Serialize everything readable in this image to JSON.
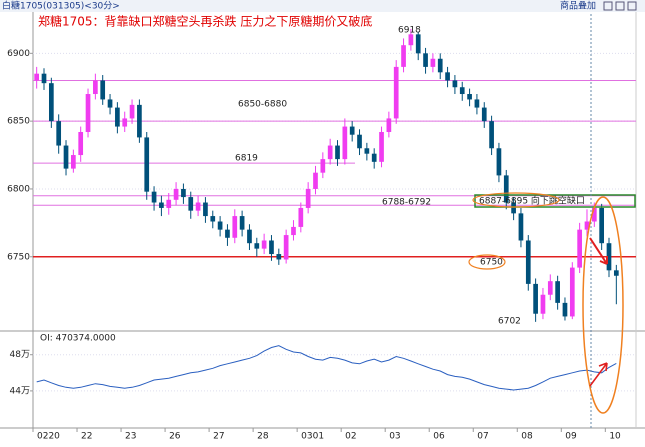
{
  "header": {
    "symbol": "白糖1705(031305)<30分>",
    "overlay": "商品叠加"
  },
  "chart_data": [
    {
      "type": "candlestick",
      "title": "郑糖1705：背靠缺口郑糖空头再杀跌 压力之下原糖期价又破底",
      "categories": [
        "0220",
        null,
        null,
        null,
        null,
        null,
        "22",
        null,
        null,
        null,
        null,
        null,
        "23",
        null,
        null,
        null,
        null,
        null,
        "26",
        null,
        null,
        null,
        null,
        null,
        "27",
        null,
        null,
        null,
        null,
        null,
        "28",
        null,
        null,
        null,
        null,
        null,
        "0301",
        null,
        null,
        null,
        null,
        null,
        "02",
        null,
        null,
        null,
        null,
        null,
        "03",
        null,
        null,
        null,
        null,
        null,
        "06",
        null,
        null,
        null,
        null,
        null,
        "07",
        null,
        null,
        null,
        null,
        null,
        "08",
        null,
        null,
        null,
        null,
        null,
        "09",
        null,
        null,
        null,
        null,
        null,
        "10",
        null
      ],
      "open": [
        6880,
        6885,
        6878,
        6850,
        6832,
        6815,
        6825,
        6842,
        6870,
        6880,
        6866,
        6860,
        6846,
        6852,
        6862,
        6838,
        6798,
        6790,
        6786,
        6792,
        6800,
        6794,
        6784,
        6790,
        6780,
        6776,
        6770,
        6764,
        6780,
        6770,
        6760,
        6756,
        6762,
        6752,
        6748,
        6766,
        6772,
        6786,
        6800,
        6812,
        6822,
        6832,
        6822,
        6846,
        6840,
        6830,
        6826,
        6820,
        6842,
        6852,
        6890,
        6906,
        6914,
        6900,
        6890,
        6896,
        6886,
        6880,
        6875,
        6870,
        6866,
        6860,
        6850,
        6830,
        6810,
        6790,
        6782,
        6762,
        6730,
        6708,
        6722,
        6732,
        6716,
        6706,
        6742,
        6770,
        6776,
        6786,
        6760,
        6740
      ],
      "high": [
        6890,
        6889,
        6882,
        6855,
        6836,
        6829,
        6846,
        6874,
        6885,
        6884,
        6870,
        6864,
        6857,
        6866,
        6866,
        6842,
        6802,
        6795,
        6797,
        6805,
        6804,
        6798,
        6795,
        6794,
        6784,
        6780,
        6774,
        6785,
        6784,
        6774,
        6764,
        6767,
        6766,
        6756,
        6770,
        6777,
        6790,
        6805,
        6817,
        6827,
        6837,
        6836,
        6852,
        6850,
        6844,
        6834,
        6830,
        6846,
        6857,
        6895,
        6911,
        6918,
        6916,
        6904,
        6900,
        6900,
        6890,
        6884,
        6879,
        6874,
        6870,
        6864,
        6854,
        6834,
        6814,
        6794,
        6786,
        6766,
        6734,
        6727,
        6737,
        6736,
        6720,
        6746,
        6775,
        6785,
        6790,
        6789,
        6764,
        6744
      ],
      "low": [
        6874,
        6873,
        6845,
        6826,
        6810,
        6812,
        6820,
        6838,
        6866,
        6862,
        6855,
        6841,
        6842,
        6848,
        6834,
        6792,
        6784,
        6780,
        6781,
        6788,
        6789,
        6778,
        6780,
        6775,
        6771,
        6765,
        6758,
        6760,
        6765,
        6755,
        6750,
        6752,
        6747,
        6744,
        6745,
        6762,
        6768,
        6782,
        6796,
        6808,
        6818,
        6817,
        6818,
        6835,
        6825,
        6821,
        6815,
        6816,
        6838,
        6848,
        6886,
        6902,
        6895,
        6885,
        6886,
        6881,
        6875,
        6870,
        6865,
        6861,
        6855,
        6845,
        6825,
        6805,
        6785,
        6777,
        6757,
        6725,
        6702,
        6704,
        6718,
        6711,
        6703,
        6704,
        6738,
        6765,
        6772,
        6755,
        6735,
        6715
      ],
      "close": [
        6885,
        6878,
        6850,
        6832,
        6815,
        6825,
        6842,
        6870,
        6880,
        6866,
        6860,
        6846,
        6852,
        6862,
        6838,
        6798,
        6790,
        6786,
        6792,
        6800,
        6794,
        6784,
        6790,
        6780,
        6776,
        6770,
        6764,
        6780,
        6770,
        6760,
        6756,
        6762,
        6752,
        6748,
        6766,
        6772,
        6786,
        6800,
        6812,
        6822,
        6832,
        6822,
        6846,
        6840,
        6830,
        6826,
        6820,
        6842,
        6852,
        6890,
        6906,
        6914,
        6900,
        6890,
        6896,
        6886,
        6880,
        6875,
        6870,
        6866,
        6860,
        6850,
        6830,
        6810,
        6790,
        6782,
        6762,
        6730,
        6708,
        6722,
        6732,
        6716,
        6706,
        6742,
        6770,
        6776,
        6786,
        6760,
        6740,
        6736
      ],
      "up_color": "#f03cf0",
      "down_color": "#00507a",
      "ylim": [
        6696,
        6929
      ],
      "yticks": [
        6900,
        6850,
        6800,
        6750
      ],
      "grid": true,
      "levels": [
        {
          "value": 6880,
          "color": "#e070e0"
        },
        {
          "value": 6850,
          "color": "#e070e0"
        },
        {
          "value": 6819,
          "color": "#e070e0"
        },
        {
          "value": 6795,
          "color": "#e070e0"
        },
        {
          "value": 6788,
          "color": "#e070e0"
        },
        {
          "value": 6750,
          "color": "#e02020"
        }
      ],
      "annotations": [
        {
          "text": "6918"
        },
        {
          "text": "6850-6880"
        },
        {
          "text": "6819"
        },
        {
          "text": "6788-6792"
        },
        {
          "text": "6887-6895 向下跳空缺口"
        },
        {
          "text": "6750"
        },
        {
          "text": "6702"
        }
      ]
    },
    {
      "type": "line",
      "label": "OI: 470374.0000",
      "color": "#2a5fc0",
      "values": [
        450000,
        452000,
        449000,
        446000,
        444000,
        443000,
        444000,
        446000,
        448000,
        447000,
        445000,
        444000,
        443000,
        444000,
        446000,
        449000,
        452000,
        453000,
        454000,
        456000,
        458000,
        460000,
        461000,
        463000,
        465000,
        468000,
        470000,
        472000,
        474000,
        476000,
        479000,
        484000,
        488000,
        490000,
        486000,
        483000,
        482000,
        478000,
        475000,
        474000,
        477000,
        476000,
        474000,
        471000,
        470000,
        473000,
        475000,
        472000,
        474000,
        478000,
        476000,
        473000,
        470000,
        467000,
        464000,
        462000,
        458000,
        456000,
        455000,
        453000,
        450000,
        447000,
        445000,
        443000,
        442000,
        441000,
        442000,
        443000,
        446000,
        450000,
        454000,
        456000,
        458000,
        460000,
        462000,
        463000,
        461000,
        460000,
        466000,
        470374
      ],
      "ylim": [
        399000,
        504000
      ],
      "yticks": [
        {
          "value": 480000,
          "label": "48万"
        },
        {
          "value": 440000,
          "label": "44万"
        }
      ]
    }
  ]
}
